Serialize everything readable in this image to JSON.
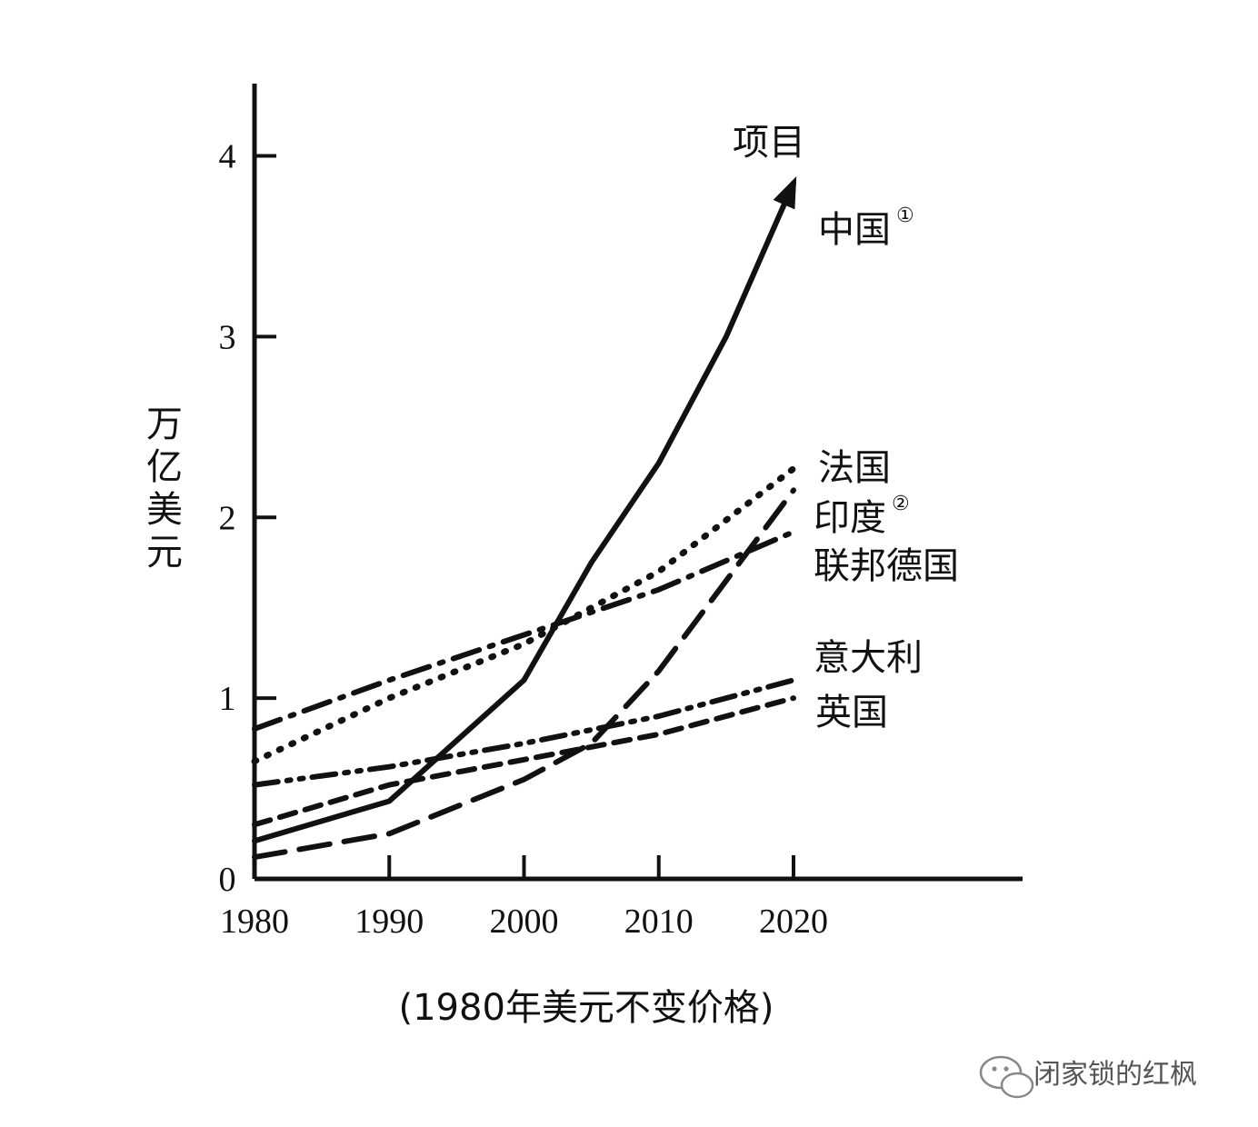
{
  "chart_data": {
    "type": "line",
    "title": "",
    "xlabel": "(1980年美元不变价格)",
    "ylabel": "万亿美元",
    "header_label": "项目",
    "x_ticks": [
      1980,
      1990,
      2000,
      2010,
      2020
    ],
    "y_ticks": [
      0,
      1,
      2,
      3,
      4
    ],
    "xlim": [
      1980,
      2037
    ],
    "ylim": [
      0,
      4.4
    ],
    "grid": false,
    "series": [
      {
        "name": "中国",
        "note": "①",
        "style": "solid",
        "color": "#111111",
        "x": [
          1980,
          1990,
          2000,
          2005,
          2010,
          2015,
          2020
        ],
        "y": [
          0.21,
          0.43,
          1.1,
          1.75,
          2.3,
          3.0,
          3.85
        ]
      },
      {
        "name": "法国",
        "style": "dotted",
        "color": "#111111",
        "x": [
          1980,
          1990,
          2000,
          2010,
          2020
        ],
        "y": [
          0.65,
          1.0,
          1.3,
          1.7,
          2.27
        ]
      },
      {
        "name": "印度",
        "note": "②",
        "style": "longdash",
        "color": "#111111",
        "x": [
          1980,
          1990,
          2000,
          2005,
          2010,
          2015,
          2020
        ],
        "y": [
          0.12,
          0.25,
          0.55,
          0.75,
          1.15,
          1.65,
          2.15
        ]
      },
      {
        "name": "联邦德国",
        "style": "dashdot",
        "color": "#111111",
        "x": [
          1980,
          1990,
          2000,
          2010,
          2020
        ],
        "y": [
          0.83,
          1.1,
          1.35,
          1.6,
          1.92
        ]
      },
      {
        "name": "意大利",
        "style": "dashdotdot",
        "color": "#111111",
        "x": [
          1980,
          1990,
          2000,
          2010,
          2020
        ],
        "y": [
          0.52,
          0.62,
          0.75,
          0.9,
          1.1
        ]
      },
      {
        "name": "英国",
        "style": "dash",
        "color": "#111111",
        "x": [
          1980,
          1990,
          2000,
          2010,
          2020
        ],
        "y": [
          0.3,
          0.52,
          0.66,
          0.8,
          1.0
        ]
      }
    ]
  },
  "watermark": {
    "text": "闭家锁的红枫",
    "icon": "wechat-icon"
  }
}
